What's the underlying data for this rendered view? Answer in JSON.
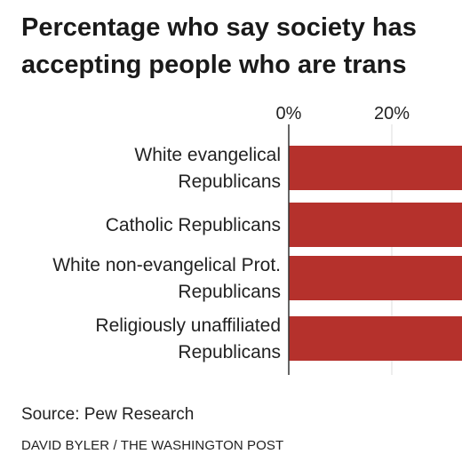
{
  "header": {
    "title_lines": [
      "Percentage who say society has",
      "accepting people who are trans"
    ]
  },
  "chart_data": {
    "type": "bar",
    "orientation": "horizontal",
    "categories": [
      [
        "White evangelical",
        "Republicans"
      ],
      [
        "Catholic Republicans"
      ],
      [
        "White non-evangelical Prot.",
        "Republicans"
      ],
      [
        "Religiously unaffiliated",
        "Republicans"
      ]
    ],
    "values": [
      null,
      null,
      null,
      null
    ],
    "x_ticks": [
      {
        "value": 0,
        "label": "0%"
      },
      {
        "value": 20,
        "label": "20%"
      }
    ],
    "bar_color": "#b5312c",
    "grid": true
  },
  "footer": {
    "source": "Source: Pew Research",
    "credit": "DAVID BYLER / THE WASHINGTON POST"
  }
}
